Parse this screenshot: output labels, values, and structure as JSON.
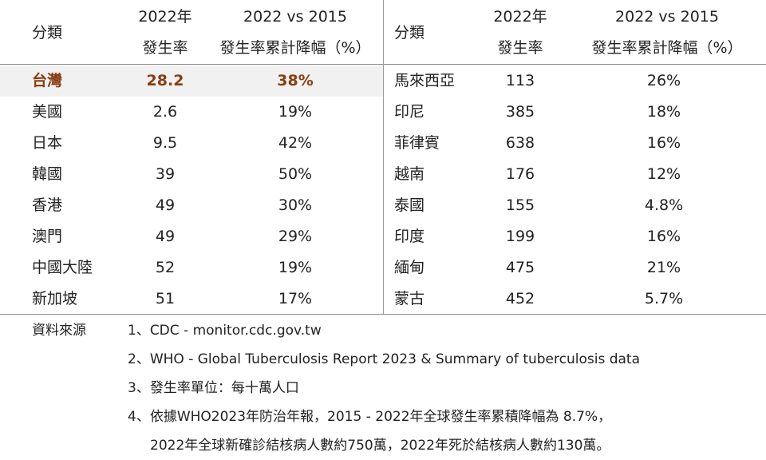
{
  "header": {
    "category": "分類",
    "rate_line1": "2022年",
    "rate_line2": "發生率",
    "pct_line1": "2022 vs 2015",
    "pct_line2": "發生率累計降幅（%）"
  },
  "left_rows": [
    {
      "name": "台灣",
      "rate": "28.2",
      "pct": "38%"
    },
    {
      "name": "美國",
      "rate": "2.6",
      "pct": "19%"
    },
    {
      "name": "日本",
      "rate": "9.5",
      "pct": "42%"
    },
    {
      "name": "韓國",
      "rate": "39",
      "pct": "50%"
    },
    {
      "name": "香港",
      "rate": "49",
      "pct": "30%"
    },
    {
      "name": "澳門",
      "rate": "49",
      "pct": "29%"
    },
    {
      "name": "中國大陸",
      "rate": "52",
      "pct": "19%"
    },
    {
      "name": "新加坡",
      "rate": "51",
      "pct": "17%"
    }
  ],
  "right_rows": [
    {
      "name": "馬來西亞",
      "rate": "113",
      "pct": "26%"
    },
    {
      "name": "印尼",
      "rate": "385",
      "pct": "18%"
    },
    {
      "name": "菲律賓",
      "rate": "638",
      "pct": "16%"
    },
    {
      "name": "越南",
      "rate": "176",
      "pct": "12%"
    },
    {
      "name": "泰國",
      "rate": "155",
      "pct": "4.8%"
    },
    {
      "name": "印度",
      "rate": "199",
      "pct": "16%"
    },
    {
      "name": "緬甸",
      "rate": "475",
      "pct": "21%"
    },
    {
      "name": "蒙古",
      "rate": "452",
      "pct": "5.7%"
    }
  ],
  "notes": {
    "label": "資料來源",
    "items": [
      "1、CDC -  monitor.cdc.gov.tw",
      "2、WHO - Global Tuberculosis Report 2023 & Summary of tuberculosis data",
      "3、發生率單位：每十萬人口",
      "4、依據WHO2023年防治年報，2015 - 2022年全球發生率累積降幅為 8.7%，",
      "2022年全球新確診結核病人數約750萬，2022年死於結核病人數約130萬。"
    ]
  },
  "colors": {
    "highlight_text": "#8a3d12",
    "highlight_bg": "#f1f1f1",
    "divider": "#8a8a8a"
  }
}
